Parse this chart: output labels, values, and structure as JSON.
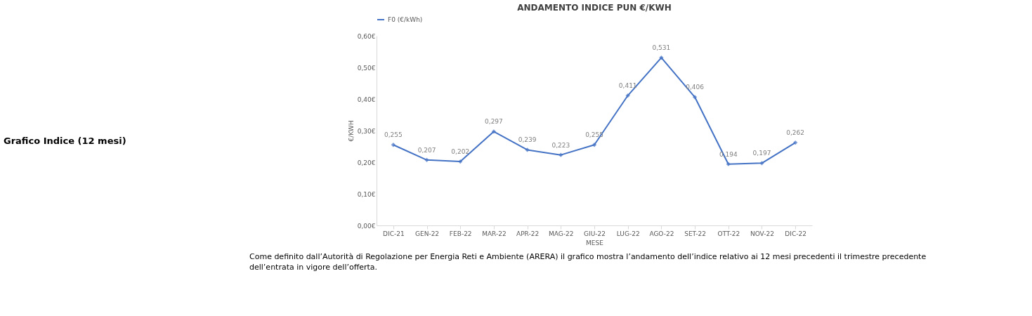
{
  "chart_data": {
    "type": "line",
    "title": "ANDAMENTO INDICE PUN €/KWH",
    "xlabel": "MESE",
    "ylabel": "€/KWH",
    "categories": [
      "DIC-21",
      "GEN-22",
      "FEB-22",
      "MAR-22",
      "APR-22",
      "MAG-22",
      "GIU-22",
      "LUG-22",
      "AGO-22",
      "SET-22",
      "OTT-22",
      "NOV-22",
      "DIC-22"
    ],
    "series": [
      {
        "name": "F0 (€/kWh)",
        "color": "#4472c4",
        "values": [
          0.255,
          0.207,
          0.202,
          0.297,
          0.239,
          0.223,
          0.255,
          0.411,
          0.531,
          0.406,
          0.194,
          0.197,
          0.262
        ],
        "value_labels": [
          "0,255",
          "0,207",
          "0,202",
          "0,297",
          "0,239",
          "0,223",
          "0,255",
          "0,411",
          "0,531",
          "0,406",
          "0,194",
          "0,197",
          "0,262"
        ]
      }
    ],
    "ylim": [
      0,
      0.6
    ],
    "yticks": [
      {
        "value": 0,
        "label": "0,00€"
      },
      {
        "value": 0.1,
        "label": "0,10€"
      },
      {
        "value": 0.2,
        "label": "0,20€"
      },
      {
        "value": 0.3,
        "label": "0,30€"
      },
      {
        "value": 0.4,
        "label": "0,40€"
      },
      {
        "value": 0.5,
        "label": "0,50€"
      },
      {
        "value": 0.6,
        "label": "0,60€"
      }
    ],
    "grid": false,
    "legend": "top",
    "marker": "diamond",
    "line_style": "solid",
    "annotations": [
      "Grafico Indice (12 mesi)",
      "Come definito dall’Autorità di Regolazione per Energia Reti e Ambiente (ARERA) il grafico mostra l’andamento dell’indice relativo ai 12 mesi precedenti il trimestre precedente dell’entrata in vigore dell’offerta."
    ]
  }
}
